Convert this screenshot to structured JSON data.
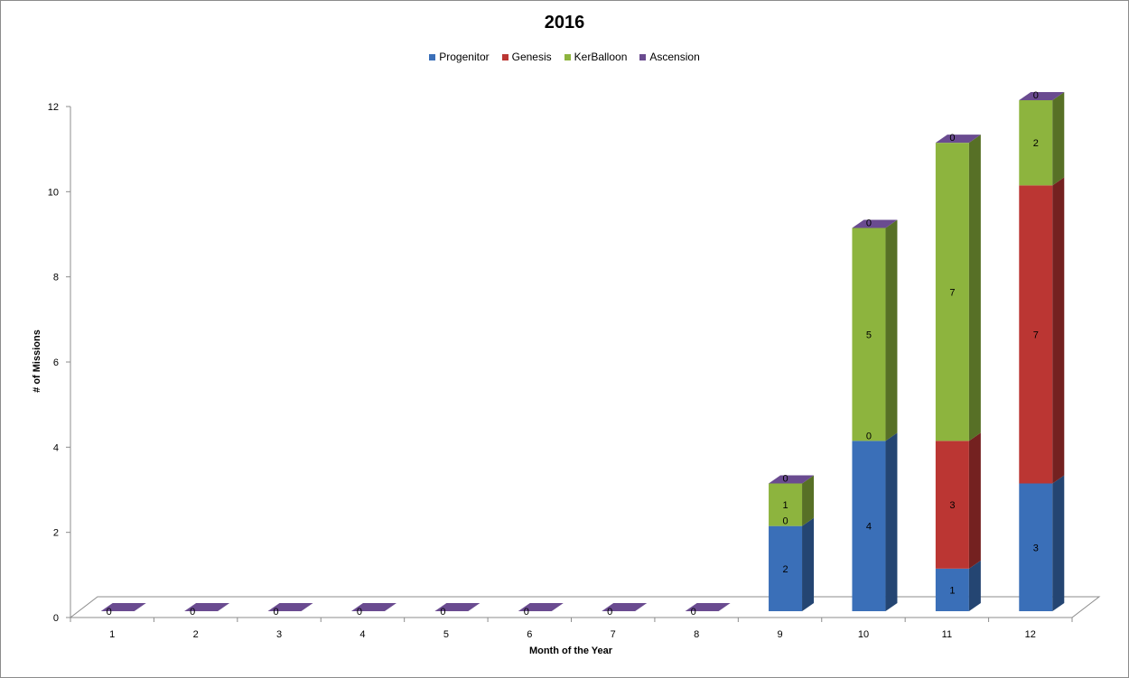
{
  "chart_data": {
    "type": "bar",
    "stacked": true,
    "three_d": true,
    "title": "2016",
    "xlabel": "Month of the Year",
    "ylabel": "# of Missions",
    "ylim": [
      0,
      12
    ],
    "yticks": [
      0,
      2,
      4,
      6,
      8,
      10,
      12
    ],
    "grid": false,
    "legend_position": "top",
    "categories": [
      "1",
      "2",
      "3",
      "4",
      "5",
      "6",
      "7",
      "8",
      "9",
      "10",
      "11",
      "12"
    ],
    "series": [
      {
        "name": "Progenitor",
        "color": "#3a6fb8",
        "values": [
          0,
          0,
          0,
          0,
          0,
          0,
          0,
          0,
          2,
          4,
          1,
          3
        ]
      },
      {
        "name": "Genesis",
        "color": "#bb3633",
        "values": [
          0,
          0,
          0,
          0,
          0,
          0,
          0,
          0,
          0,
          0,
          3,
          7
        ]
      },
      {
        "name": "KerBalloon",
        "color": "#8db43e",
        "values": [
          0,
          0,
          0,
          0,
          0,
          0,
          0,
          0,
          1,
          5,
          7,
          2
        ]
      },
      {
        "name": "Ascension",
        "color": "#6a4b90",
        "values": [
          0,
          0,
          0,
          0,
          0,
          0,
          0,
          0,
          0,
          0,
          0,
          0
        ]
      }
    ]
  }
}
